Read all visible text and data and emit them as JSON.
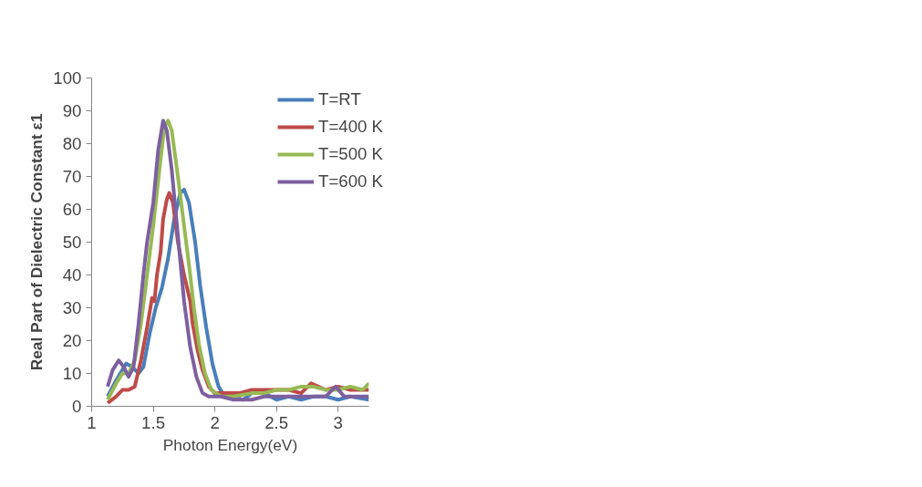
{
  "chart_data": {
    "type": "line",
    "xlabel": "Photon Energy(eV)",
    "ylabel": "Real Part of Dielectric Constant ε1",
    "xlim": [
      1,
      3.25
    ],
    "xticks": [
      1,
      1.5,
      2,
      2.5,
      3
    ],
    "ylim": [
      0,
      100
    ],
    "yticks": [
      0,
      10,
      20,
      30,
      40,
      50,
      60,
      70,
      80,
      90,
      100
    ],
    "grid": false,
    "legend": "right",
    "marker": "none",
    "line_style": "solid",
    "series": [
      {
        "name": "T=RT",
        "color": "#4a7ebb",
        "x": [
          1.13,
          1.2,
          1.28,
          1.33,
          1.38,
          1.42,
          1.47,
          1.52,
          1.57,
          1.62,
          1.67,
          1.72,
          1.75,
          1.79,
          1.84,
          1.88,
          1.93,
          1.98,
          2.03,
          2.08,
          2.15,
          2.23,
          2.3,
          2.4,
          2.5,
          2.6,
          2.7,
          2.8,
          2.9,
          3.0,
          3.1,
          3.25
        ],
        "values": [
          3,
          8,
          13,
          12,
          10,
          12,
          22,
          30,
          36,
          45,
          57,
          65,
          66,
          62,
          50,
          37,
          24,
          13,
          6,
          3,
          3,
          2,
          4,
          4,
          2,
          3,
          2,
          3,
          3,
          2,
          3,
          2
        ]
      },
      {
        "name": "T=400 K",
        "color": "#be4b48",
        "x": [
          1.13,
          1.2,
          1.25,
          1.3,
          1.35,
          1.4,
          1.45,
          1.49,
          1.51,
          1.53,
          1.56,
          1.58,
          1.61,
          1.63,
          1.66,
          1.7,
          1.75,
          1.8,
          1.82,
          1.86,
          1.9,
          1.95,
          2.0,
          2.1,
          2.2,
          2.3,
          2.4,
          2.5,
          2.6,
          2.7,
          2.78,
          2.9,
          3.0,
          3.1,
          3.25
        ],
        "values": [
          1,
          3,
          5,
          5,
          6,
          14,
          24,
          33,
          32,
          40,
          47,
          57,
          63,
          65,
          62,
          50,
          40,
          32,
          25,
          17,
          11,
          6,
          4,
          4,
          4,
          5,
          5,
          5,
          5,
          4,
          7,
          5,
          6,
          5,
          5
        ]
      },
      {
        "name": "T=500 K",
        "color": "#98b954",
        "x": [
          1.13,
          1.2,
          1.25,
          1.3,
          1.35,
          1.4,
          1.45,
          1.5,
          1.55,
          1.59,
          1.62,
          1.65,
          1.7,
          1.75,
          1.8,
          1.83,
          1.87,
          1.92,
          1.97,
          2.05,
          2.15,
          2.3,
          2.4,
          2.5,
          2.6,
          2.7,
          2.8,
          2.9,
          3.0,
          3.1,
          3.2,
          3.25
        ],
        "values": [
          2,
          7,
          10,
          10,
          14,
          25,
          40,
          55,
          72,
          85,
          87,
          84,
          70,
          55,
          40,
          30,
          19,
          10,
          5,
          3,
          3,
          4,
          4,
          5,
          5,
          6,
          6,
          5,
          5,
          6,
          5,
          7
        ]
      },
      {
        "name": "T=600 K",
        "color": "#7d60a0",
        "x": [
          1.13,
          1.17,
          1.22,
          1.26,
          1.3,
          1.34,
          1.38,
          1.42,
          1.45,
          1.5,
          1.54,
          1.58,
          1.61,
          1.65,
          1.7,
          1.75,
          1.8,
          1.85,
          1.9,
          1.95,
          2.05,
          2.15,
          2.3,
          2.4,
          2.5,
          2.6,
          2.7,
          2.8,
          2.9,
          2.98,
          3.05,
          3.15,
          3.25
        ],
        "values": [
          6,
          11,
          14,
          12,
          9,
          12,
          25,
          40,
          50,
          62,
          78,
          87,
          84,
          72,
          52,
          32,
          18,
          9,
          4,
          3,
          3,
          2,
          2,
          3,
          3,
          3,
          3,
          3,
          3,
          6,
          3,
          3,
          3
        ]
      }
    ]
  }
}
